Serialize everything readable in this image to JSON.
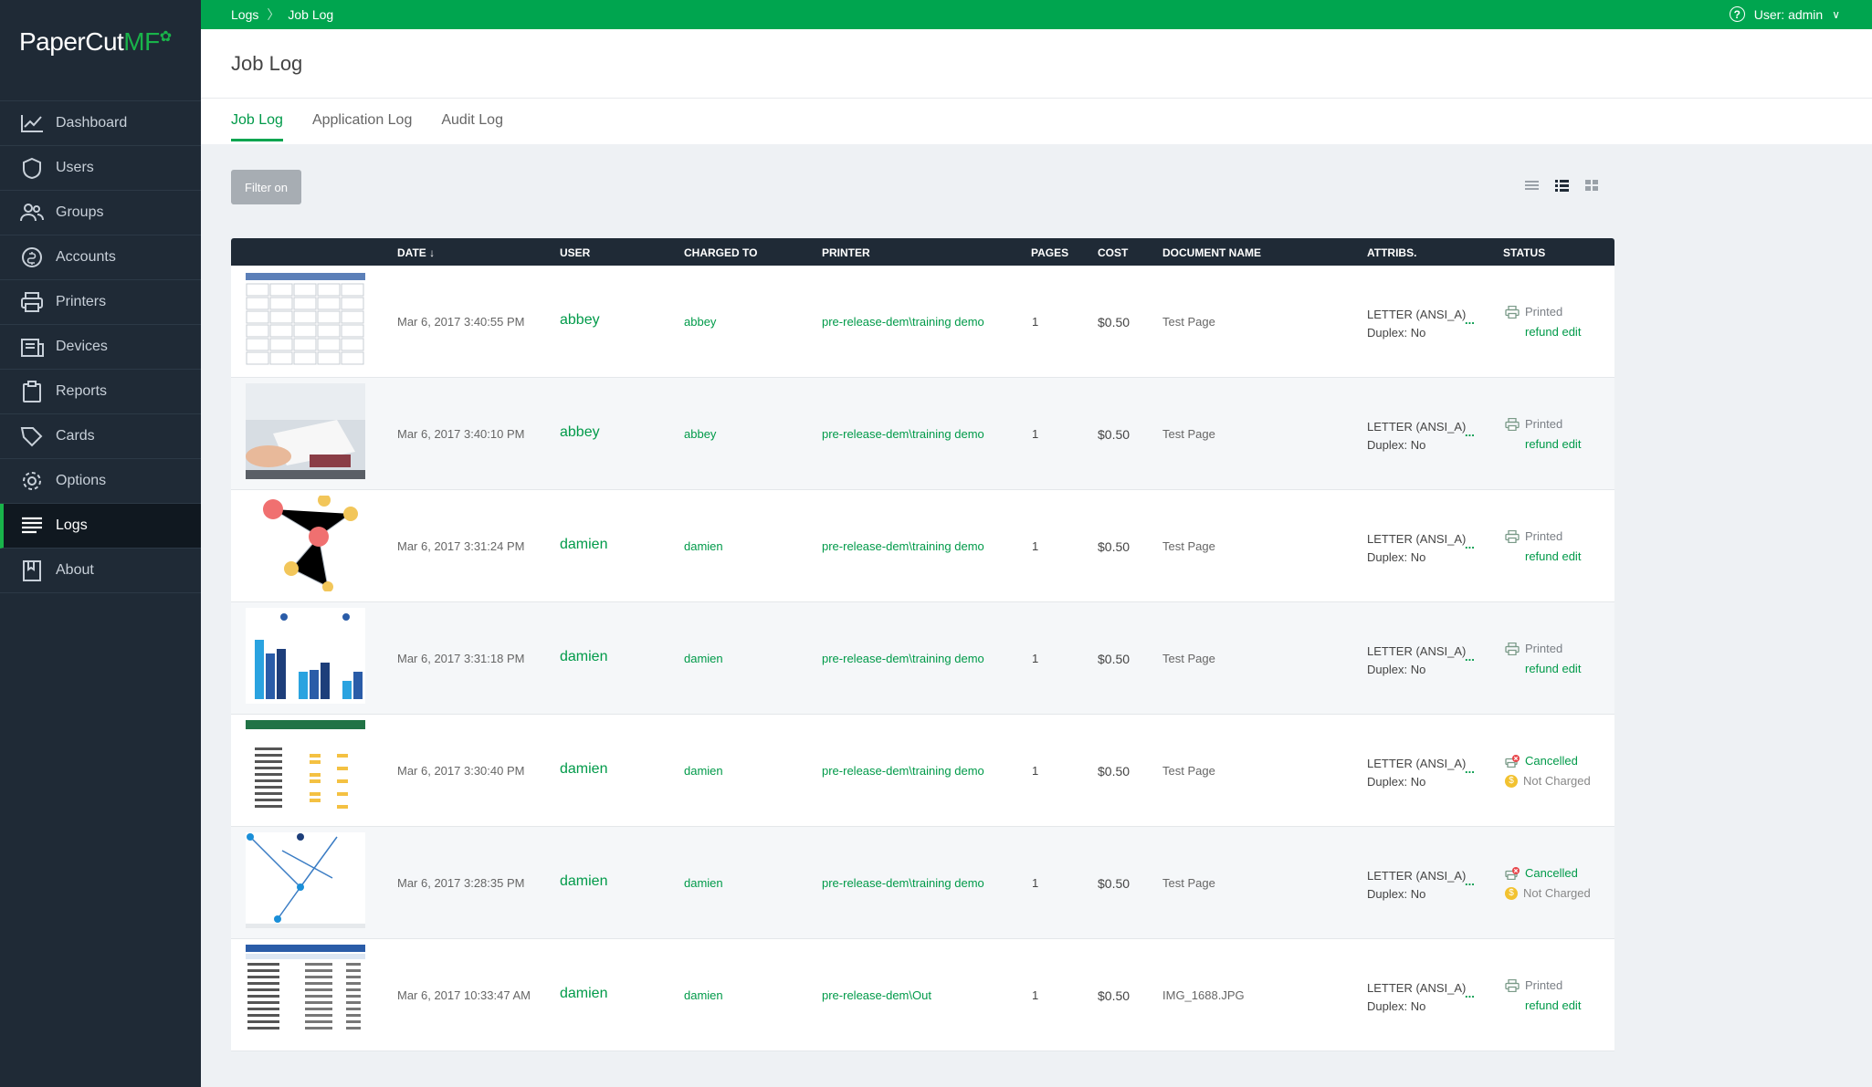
{
  "brand": {
    "name": "PaperCut",
    "suffix": "MF",
    "accent": "#00a54f",
    "sidebar_bg": "#1f2a36"
  },
  "sidebar": {
    "items": [
      {
        "label": "Dashboard",
        "icon": "chart-line-icon"
      },
      {
        "label": "Users",
        "icon": "shield-icon"
      },
      {
        "label": "Groups",
        "icon": "users-icon"
      },
      {
        "label": "Accounts",
        "icon": "coin-icon"
      },
      {
        "label": "Printers",
        "icon": "printer-icon"
      },
      {
        "label": "Devices",
        "icon": "device-icon"
      },
      {
        "label": "Reports",
        "icon": "clipboard-icon"
      },
      {
        "label": "Cards",
        "icon": "tag-icon"
      },
      {
        "label": "Options",
        "icon": "gear-icon"
      },
      {
        "label": "Logs",
        "icon": "list-icon",
        "active": true
      },
      {
        "label": "About",
        "icon": "book-icon"
      }
    ]
  },
  "topbar": {
    "breadcrumb": [
      "Logs",
      "Job Log"
    ],
    "user_label": "User: admin"
  },
  "header": {
    "title": "Job Log",
    "tabs": [
      "Job Log",
      "Application Log",
      "Audit Log"
    ],
    "active_tab": "Job Log"
  },
  "toolbar": {
    "filter_label": "Filter on"
  },
  "table": {
    "columns": [
      "DATE",
      "USER",
      "CHARGED TO",
      "PRINTER",
      "PAGES",
      "COST",
      "DOCUMENT NAME",
      "ATTRIBS.",
      "STATUS"
    ],
    "rows": [
      {
        "thumb": "calendar",
        "date": "Mar 6, 2017 3:40:55 PM",
        "user": "abbey",
        "charged_to": "abbey",
        "printer": "pre-release-dem\\training demo",
        "pages": "1",
        "cost": "$0.50",
        "document": "Test Page",
        "attr1": "LETTER (ANSI_A)",
        "attr2": "Duplex: No",
        "more": "...",
        "status": "Printed",
        "status2": "refund edit",
        "state": "printed"
      },
      {
        "thumb": "photo",
        "date": "Mar 6, 2017 3:40:10 PM",
        "user": "abbey",
        "charged_to": "abbey",
        "printer": "pre-release-dem\\training demo",
        "pages": "1",
        "cost": "$0.50",
        "document": "Test Page",
        "attr1": "LETTER (ANSI_A)",
        "attr2": "Duplex: No",
        "more": "...",
        "status": "Printed",
        "status2": "refund edit",
        "state": "printed"
      },
      {
        "thumb": "network",
        "date": "Mar 6, 2017 3:31:24 PM",
        "user": "damien",
        "charged_to": "damien",
        "printer": "pre-release-dem\\training demo",
        "pages": "1",
        "cost": "$0.50",
        "document": "Test Page",
        "attr1": "LETTER (ANSI_A)",
        "attr2": "Duplex: No",
        "more": "...",
        "status": "Printed",
        "status2": "refund edit",
        "state": "printed"
      },
      {
        "thumb": "barchart",
        "date": "Mar 6, 2017 3:31:18 PM",
        "user": "damien",
        "charged_to": "damien",
        "printer": "pre-release-dem\\training demo",
        "pages": "1",
        "cost": "$0.50",
        "document": "Test Page",
        "attr1": "LETTER (ANSI_A)",
        "attr2": "Duplex: No",
        "more": "...",
        "status": "Printed",
        "status2": "refund edit",
        "state": "printed"
      },
      {
        "thumb": "spreadsheet",
        "date": "Mar 6, 2017 3:30:40 PM",
        "user": "damien",
        "charged_to": "damien",
        "printer": "pre-release-dem\\training demo",
        "pages": "1",
        "cost": "$0.50",
        "document": "Test Page",
        "attr1": "LETTER (ANSI_A)",
        "attr2": "Duplex: No",
        "more": "...",
        "status": "Cancelled",
        "status2": "Not Charged",
        "state": "cancelled"
      },
      {
        "thumb": "flow",
        "date": "Mar 6, 2017 3:28:35 PM",
        "user": "damien",
        "charged_to": "damien",
        "printer": "pre-release-dem\\training demo",
        "pages": "1",
        "cost": "$0.50",
        "document": "Test Page",
        "attr1": "LETTER (ANSI_A)",
        "attr2": "Duplex: No",
        "more": "...",
        "status": "Cancelled",
        "status2": "Not Charged",
        "state": "cancelled"
      },
      {
        "thumb": "invoice",
        "date": "Mar 6, 2017 10:33:47 AM",
        "user": "damien",
        "charged_to": "damien",
        "printer": "pre-release-dem\\Out",
        "pages": "1",
        "cost": "$0.50",
        "document": "IMG_1688.JPG",
        "attr1": "LETTER (ANSI_A)",
        "attr2": "Duplex: No",
        "more": "...",
        "status": "Printed",
        "status2": "refund edit",
        "state": "printed"
      }
    ]
  }
}
